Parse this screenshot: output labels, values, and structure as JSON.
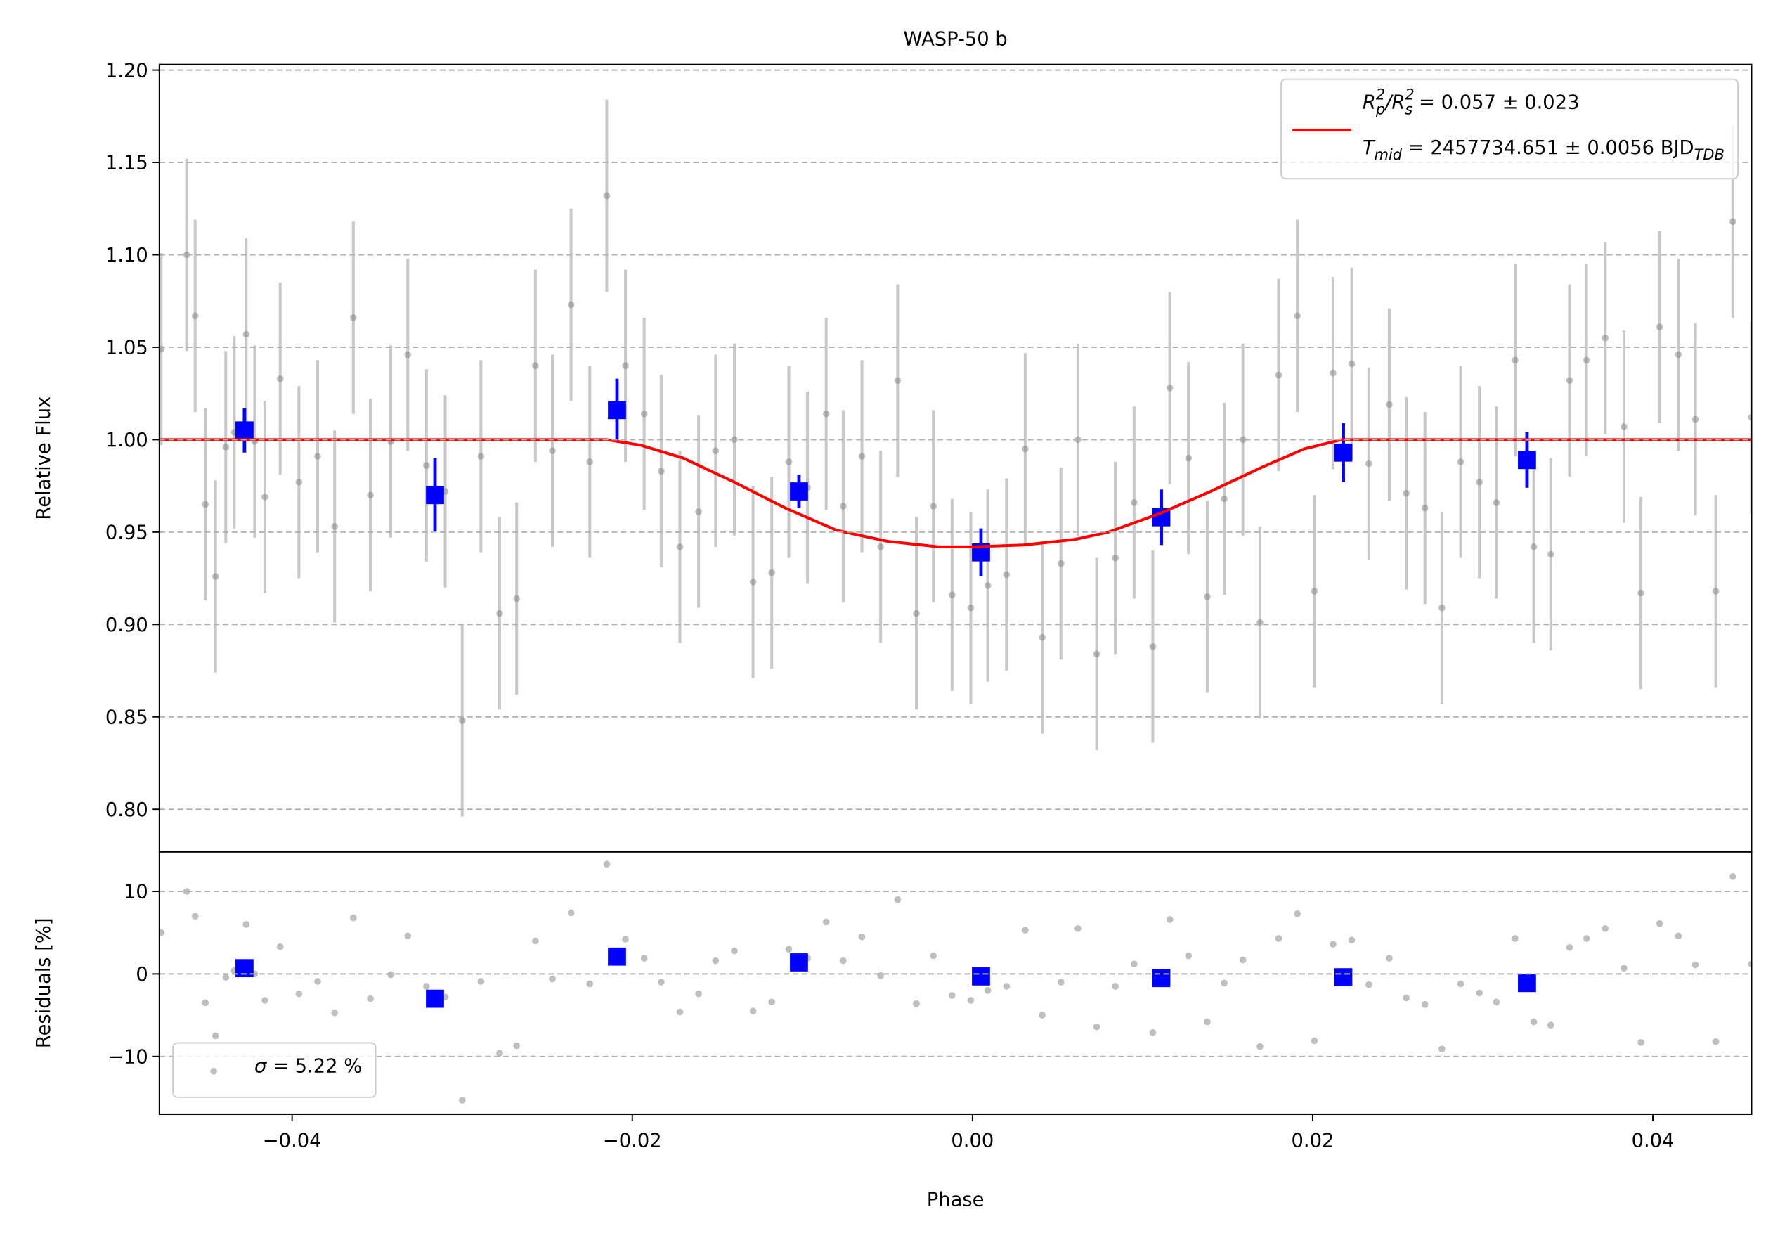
{
  "chart_data": [
    {
      "type": "scatter",
      "title": "WASP-50 b",
      "ylabel": "Relative Flux",
      "xlim": [
        -0.0478,
        0.0458
      ],
      "ylim": [
        0.777,
        1.203
      ],
      "yticks": [
        {
          "value": 0.8,
          "label": "0.80"
        },
        0.85,
        {
          "value": 0.9,
          "label": "0.90"
        },
        0.95,
        {
          "value": 1.0,
          "label": "1.00"
        },
        1.05,
        {
          "value": 1.1,
          "label": "1.10"
        },
        1.15,
        {
          "value": 1.2,
          "label": "1.20"
        }
      ],
      "grid": true,
      "legend": "upper right",
      "series": [
        {
          "marker": "o",
          "color": "#808080",
          "ecolor": "#c8c8c8",
          "error": 0.052,
          "x": [
            -0.0477,
            -0.0462,
            -0.0457,
            -0.0451,
            -0.0445,
            -0.0439,
            -0.0434,
            -0.0427,
            -0.0422,
            -0.0416,
            -0.0407,
            -0.0396,
            -0.0385,
            -0.0375,
            -0.0364,
            -0.0354,
            -0.0342,
            -0.0332,
            -0.0321,
            -0.031,
            -0.03,
            -0.0289,
            -0.0278,
            -0.0268,
            -0.0257,
            -0.0247,
            -0.0236,
            -0.0225,
            -0.0215,
            -0.0204,
            -0.0193,
            -0.0183,
            -0.0172,
            -0.0161,
            -0.0151,
            -0.014,
            -0.0129,
            -0.0118,
            -0.0108,
            -0.0097,
            -0.0086,
            -0.0076,
            -0.0065,
            -0.0054,
            -0.0044,
            -0.0033,
            -0.0023,
            -0.0012,
            -0.0001,
            0.0009,
            0.002,
            0.0031,
            0.0041,
            0.0052,
            0.0062,
            0.0073,
            0.0084,
            0.0095,
            0.0106,
            0.0116,
            0.0127,
            0.0138,
            0.0148,
            0.0159,
            0.0169,
            0.018,
            0.0191,
            0.0201,
            0.0212,
            0.0223,
            0.0233,
            0.0245,
            0.0255,
            0.0266,
            0.0276,
            0.0287,
            0.0298,
            0.0308,
            0.0319,
            0.033,
            0.034,
            0.0351,
            0.0361,
            0.0372,
            0.0383,
            0.0393,
            0.0404,
            0.0415,
            0.0425,
            0.0437,
            0.0447,
            0.0458
          ],
          "values": [
            1.049,
            1.1,
            1.067,
            0.965,
            0.926,
            0.996,
            1.004,
            1.057,
            0.999,
            0.969,
            1.033,
            0.977,
            0.991,
            0.953,
            1.066,
            0.97,
            0.999,
            1.046,
            0.986,
            0.972,
            0.848,
            0.991,
            0.906,
            0.914,
            1.04,
            0.994,
            1.073,
            0.988,
            1.132,
            1.04,
            1.014,
            0.983,
            0.942,
            0.961,
            0.994,
            1.0,
            0.923,
            0.928,
            0.988,
            0.974,
            1.014,
            0.964,
            0.991,
            0.942,
            1.032,
            0.906,
            0.964,
            0.916,
            0.909,
            0.921,
            0.927,
            0.995,
            0.893,
            0.933,
            1.0,
            0.884,
            0.936,
            0.966,
            0.888,
            1.028,
            0.99,
            0.915,
            0.968,
            1.0,
            0.901,
            1.035,
            1.067,
            0.918,
            1.036,
            1.041,
            0.987,
            1.019,
            0.971,
            0.963,
            0.909,
            0.988,
            0.977,
            0.966,
            1.043,
            0.942,
            0.938,
            1.032,
            1.043,
            1.055,
            1.007,
            0.917,
            1.061,
            1.046,
            1.011,
            0.918,
            1.118,
            1.012
          ]
        },
        {
          "marker": "s",
          "color": "#0000ff",
          "ecolor": "#0000ff",
          "x": [
            -0.0428,
            -0.0316,
            -0.0209,
            -0.0102,
            0.0005,
            0.0111,
            0.0218,
            0.0326
          ],
          "values": [
            1.005,
            0.97,
            1.016,
            0.972,
            0.939,
            0.958,
            0.993,
            0.989
          ],
          "errors": [
            0.012,
            0.02,
            0.017,
            0.009,
            0.013,
            0.015,
            0.016,
            0.015
          ]
        },
        {
          "marker": "line",
          "color": "#ff0000",
          "name": [
            [
              {
                "text": "R",
                "style": "italic"
              },
              {
                "text": "2",
                "style": "sup"
              },
              {
                "text": "p",
                "style": "sub"
              },
              {
                "text": "/",
                "style": "italic"
              },
              {
                "text": "R",
                "style": "italic"
              },
              {
                "text": "2",
                "style": "sup"
              },
              {
                "text": "s",
                "style": "sub"
              },
              {
                "text": " = 0.057 ± 0.023",
                "style": "normal"
              }
            ],
            [
              {
                "text": "T",
                "style": "italic"
              },
              {
                "text": "mid",
                "style": "sub"
              },
              {
                "text": " = 2457734.651 ± 0.0056 BJD",
                "style": "normal"
              },
              {
                "text": "TDB",
                "style": "sub"
              }
            ]
          ],
          "x": [
            -0.0478,
            -0.0215,
            -0.0195,
            -0.017,
            -0.014,
            -0.011,
            -0.008,
            -0.005,
            -0.002,
            0.0,
            0.003,
            0.006,
            0.008,
            0.011,
            0.014,
            0.017,
            0.0195,
            0.0217,
            0.0458
          ],
          "values": [
            1.0,
            1.0,
            0.997,
            0.99,
            0.977,
            0.963,
            0.951,
            0.945,
            0.942,
            0.942,
            0.943,
            0.946,
            0.95,
            0.96,
            0.972,
            0.985,
            0.995,
            1.0,
            1.0
          ]
        }
      ]
    },
    {
      "type": "scatter",
      "xlabel": "Phase",
      "ylabel": "Residuals [%]",
      "xlim": [
        -0.0478,
        0.0458
      ],
      "ylim": [
        -17,
        14.8
      ],
      "xticks": [
        {
          "value": -0.04,
          "label": "−0.04"
        },
        {
          "value": -0.02,
          "label": "−0.02"
        },
        {
          "value": 0.0,
          "label": "0.00"
        },
        0.02,
        0.04
      ],
      "yticks": [
        {
          "value": -10,
          "label": "−10"
        },
        0,
        10
      ],
      "grid": true,
      "legend": "lower left",
      "series": [
        {
          "marker": "o",
          "color": "#808080",
          "name": [
            [
              {
                "text": "σ",
                "style": "italic"
              },
              {
                "text": " = 5.22 %",
                "style": "normal"
              }
            ]
          ],
          "x": [
            -0.0477,
            -0.0462,
            -0.0457,
            -0.0451,
            -0.0445,
            -0.0439,
            -0.0434,
            -0.0427,
            -0.0422,
            -0.0416,
            -0.0407,
            -0.0396,
            -0.0385,
            -0.0375,
            -0.0364,
            -0.0354,
            -0.0342,
            -0.0332,
            -0.0321,
            -0.031,
            -0.03,
            -0.0289,
            -0.0278,
            -0.0268,
            -0.0257,
            -0.0247,
            -0.0236,
            -0.0225,
            -0.0215,
            -0.0204,
            -0.0193,
            -0.0183,
            -0.0172,
            -0.0161,
            -0.0151,
            -0.014,
            -0.0129,
            -0.0118,
            -0.0108,
            -0.0097,
            -0.0086,
            -0.0076,
            -0.0065,
            -0.0054,
            -0.0044,
            -0.0033,
            -0.0023,
            -0.0012,
            -0.0001,
            0.0009,
            0.002,
            0.0031,
            0.0041,
            0.0052,
            0.0062,
            0.0073,
            0.0084,
            0.0095,
            0.0106,
            0.0116,
            0.0127,
            0.0138,
            0.0148,
            0.0159,
            0.0169,
            0.018,
            0.0191,
            0.0201,
            0.0212,
            0.0223,
            0.0233,
            0.0245,
            0.0255,
            0.0266,
            0.0276,
            0.0287,
            0.0298,
            0.0308,
            0.0319,
            0.033,
            0.034,
            0.0351,
            0.0361,
            0.0372,
            0.0383,
            0.0393,
            0.0404,
            0.0415,
            0.0425,
            0.0437,
            0.0447,
            0.0458
          ],
          "values": [
            5,
            10,
            7,
            -3.5,
            -7.5,
            -0.4,
            0.4,
            6,
            0,
            -3.2,
            3.3,
            -2.4,
            -0.9,
            -4.7,
            6.8,
            -3,
            -0.1,
            4.6,
            -1.5,
            -2.8,
            -15.3,
            -0.9,
            -9.6,
            -8.7,
            4,
            -0.6,
            7.4,
            -1.2,
            13.3,
            4.2,
            1.9,
            -1,
            -4.6,
            -2.4,
            1.6,
            2.8,
            -4.5,
            -3.4,
            3,
            1.9,
            6.3,
            1.6,
            4.5,
            -0.2,
            9,
            -3.6,
            2.2,
            -2.6,
            -3.2,
            -2,
            -1.5,
            5.3,
            -5,
            -1,
            5.5,
            -6.4,
            -1.5,
            1.2,
            -7.1,
            6.6,
            2.2,
            -5.8,
            -1.1,
            1.7,
            -8.8,
            4.3,
            7.3,
            -8.1,
            3.6,
            4.1,
            -1.3,
            1.9,
            -2.9,
            -3.7,
            -9.1,
            -1.2,
            -2.3,
            -3.4,
            4.3,
            -5.8,
            -6.2,
            3.2,
            4.3,
            5.5,
            0.7,
            -8.3,
            6.1,
            4.6,
            1.1,
            -8.2,
            11.8,
            1.2
          ]
        },
        {
          "marker": "s",
          "color": "#0000ff",
          "x": [
            -0.0428,
            -0.0316,
            -0.0209,
            -0.0102,
            0.0005,
            0.0111,
            0.0218,
            0.0326
          ],
          "values": [
            0.7,
            -3.0,
            2.1,
            1.4,
            -0.3,
            -0.5,
            -0.4,
            -1.1
          ]
        }
      ]
    }
  ]
}
